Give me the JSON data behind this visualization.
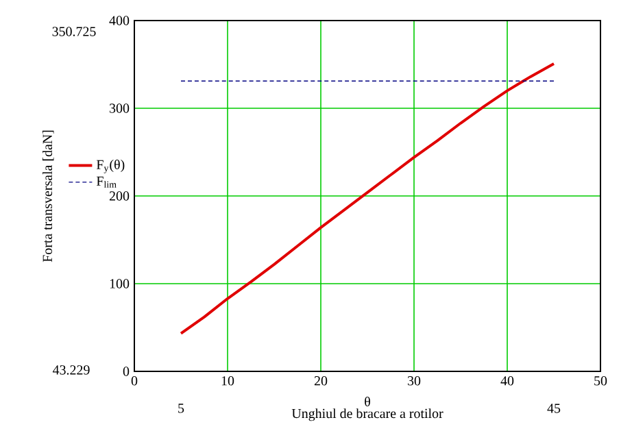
{
  "chart_data": {
    "type": "line",
    "xlabel": "Unghiul de bracare a rotilor",
    "ylabel": "Forta transversala [daN]",
    "xlim": [
      0,
      50
    ],
    "xticks": [
      0,
      10,
      20,
      30,
      40,
      50
    ],
    "ylim": [
      0,
      400
    ],
    "yticks": [
      0,
      100,
      200,
      300,
      400
    ],
    "grid": true,
    "legend": "left",
    "marker": "none",
    "series": [
      {
        "name": "F$_{y}$(θ)",
        "color": "#e00000",
        "line_style": "solid",
        "x": [
          5,
          7.5,
          10,
          12.5,
          15,
          17.5,
          20,
          22.5,
          25,
          27.5,
          30,
          32.5,
          35,
          37.5,
          40,
          42.5,
          45
        ],
        "values": [
          43.229,
          62,
          83,
          102,
          122,
          143,
          164,
          184,
          204,
          224,
          244,
          263,
          283,
          302,
          320,
          336,
          350.725
        ]
      },
      {
        "name": "F$_{lim}$",
        "color": "#000080",
        "line_style": "dashed",
        "x": [
          5,
          45
        ],
        "values": [
          331,
          331
        ]
      }
    ],
    "annotations": [
      "350.725",
      "43.229",
      "5",
      "45",
      "θ"
    ]
  }
}
